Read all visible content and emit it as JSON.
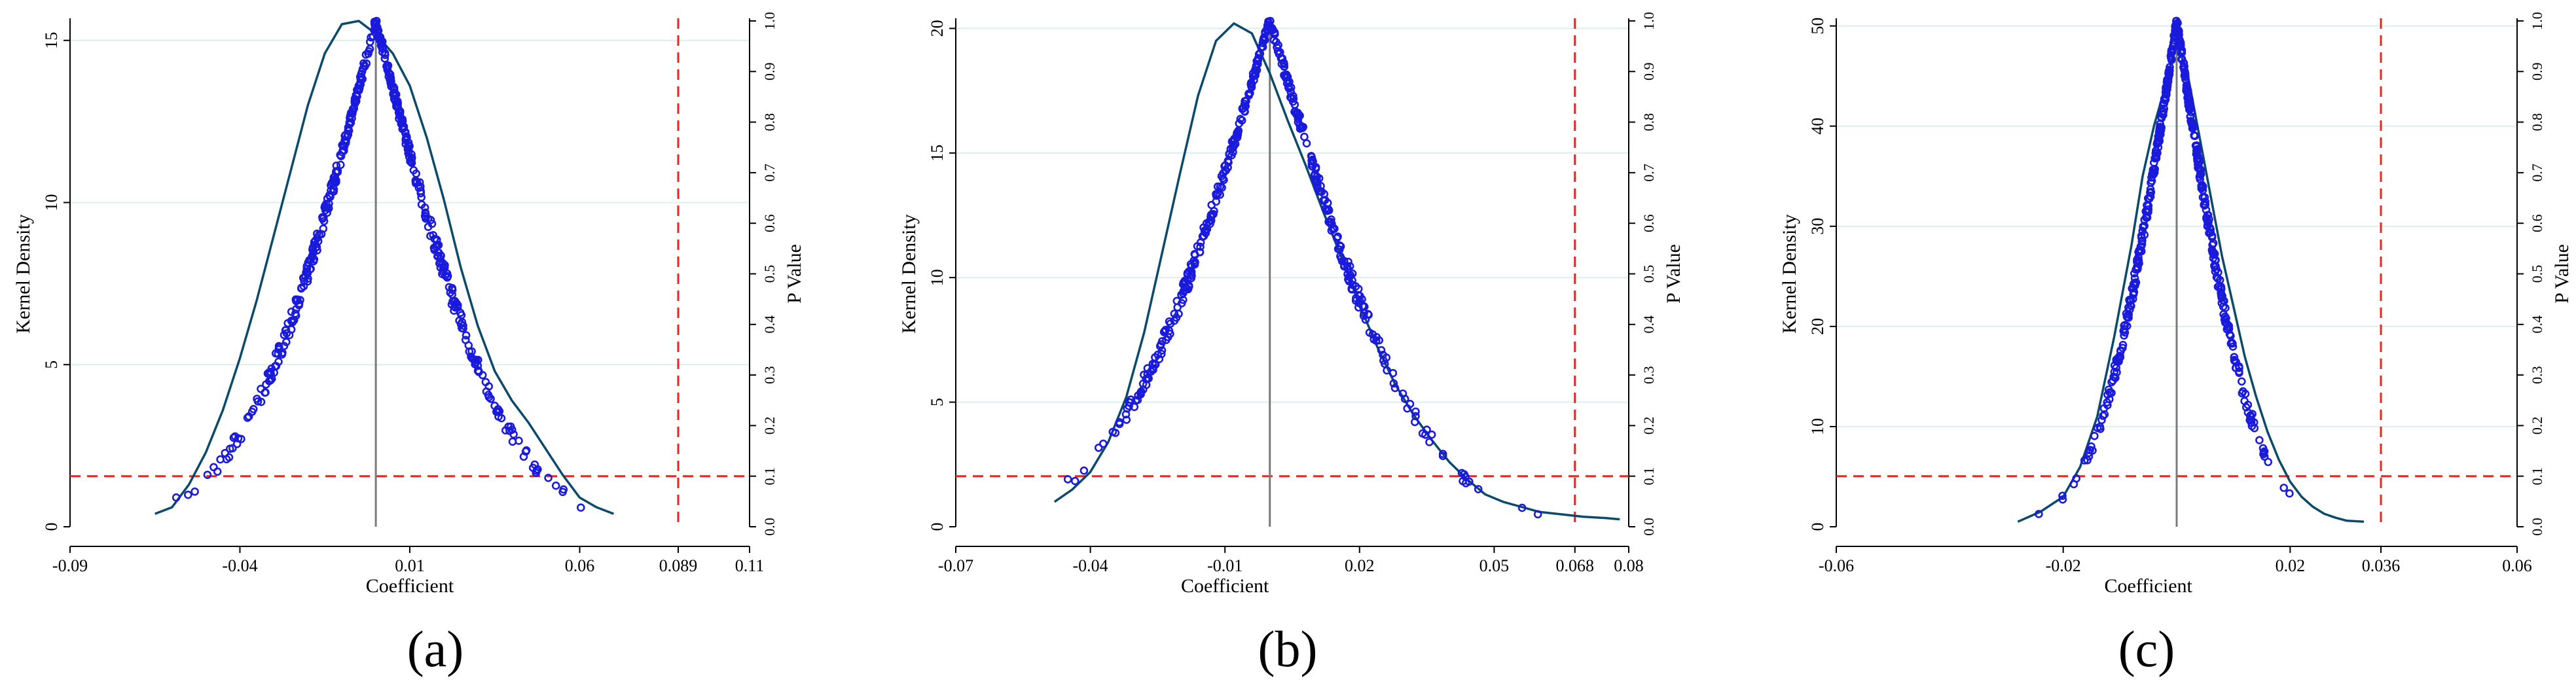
{
  "figure": {
    "colors": {
      "points": "#1a1adc",
      "density": "#0b4a6b",
      "threshold": "#e8251e",
      "baseline": "#7a7a7a",
      "grid": "#dcefee",
      "axis": "#000000"
    }
  },
  "chart_data": [
    {
      "type": "scatter",
      "panel_label": "(a)",
      "title": "",
      "xlabel": "Coefficient",
      "ylabel": "Kernel Density",
      "y2label": "P Value",
      "xlim": [
        -0.09,
        0.11
      ],
      "ylim": [
        0,
        15.6
      ],
      "y2lim": [
        0,
        1.0
      ],
      "xticks": [
        -0.09,
        -0.04,
        0.01,
        0.06,
        0.089,
        0.11
      ],
      "xtick_labels": [
        "-0.09",
        "-0.04",
        "0.01",
        "0.06",
        "0.089",
        "0.11"
      ],
      "yticks": [
        0,
        5,
        10,
        15
      ],
      "ytick_labels": [
        "0",
        "5",
        "10",
        "15"
      ],
      "y2ticks": [
        0,
        0.1,
        0.2,
        0.3,
        0.4,
        0.5,
        0.6,
        0.7,
        0.8,
        0.9,
        1.0
      ],
      "y2tick_labels": [
        "0.0",
        "0.1",
        "0.2",
        "0.3",
        "0.4",
        "0.5",
        "0.6",
        "0.7",
        "0.8",
        "0.9",
        "1.0"
      ],
      "grid": true,
      "baseline_x": 0.0,
      "threshold_x": 0.089,
      "threshold_p": 0.1,
      "series": [
        {
          "name": "Kernel Density",
          "type": "line",
          "x": [
            -0.065,
            -0.06,
            -0.055,
            -0.05,
            -0.045,
            -0.04,
            -0.035,
            -0.03,
            -0.025,
            -0.02,
            -0.015,
            -0.01,
            -0.005,
            0.0,
            0.005,
            0.01,
            0.015,
            0.02,
            0.025,
            0.03,
            0.035,
            0.04,
            0.045,
            0.05,
            0.055,
            0.06,
            0.065,
            0.07
          ],
          "y": [
            0.4,
            0.6,
            1.3,
            2.3,
            3.6,
            5.2,
            7.0,
            9.0,
            11.0,
            13.0,
            14.6,
            15.5,
            15.6,
            15.2,
            14.6,
            13.6,
            12.0,
            10.1,
            8.0,
            6.2,
            4.8,
            3.9,
            3.2,
            2.4,
            1.6,
            0.9,
            0.6,
            0.4
          ]
        },
        {
          "name": "P Value",
          "type": "scatter",
          "axis": "right",
          "generator": "two-sided normal p-value",
          "count": 460,
          "center": 0.0,
          "se": 0.024,
          "x_range": [
            -0.066,
            0.069
          ]
        }
      ]
    },
    {
      "type": "scatter",
      "panel_label": "(b)",
      "title": "",
      "xlabel": "Coefficient",
      "ylabel": "Kernel Density",
      "y2label": "P Value",
      "xlim": [
        -0.07,
        0.08
      ],
      "ylim": [
        0,
        20.3
      ],
      "y2lim": [
        0,
        1.0
      ],
      "xticks": [
        -0.07,
        -0.04,
        -0.01,
        0.02,
        0.05,
        0.068,
        0.08
      ],
      "xtick_labels": [
        "-0.07",
        "-0.04",
        "-0.01",
        "0.02",
        "0.05",
        "0.068",
        "0.08"
      ],
      "yticks": [
        0,
        5,
        10,
        15,
        20
      ],
      "ytick_labels": [
        "0",
        "5",
        "10",
        "15",
        "20"
      ],
      "y2ticks": [
        0,
        0.1,
        0.2,
        0.3,
        0.4,
        0.5,
        0.6,
        0.7,
        0.8,
        0.9,
        1.0
      ],
      "y2tick_labels": [
        "0.0",
        "0.1",
        "0.2",
        "0.3",
        "0.4",
        "0.5",
        "0.6",
        "0.7",
        "0.8",
        "0.9",
        "1.0"
      ],
      "grid": true,
      "baseline_x": 0.0,
      "threshold_x": 0.068,
      "threshold_p": 0.1,
      "series": [
        {
          "name": "Kernel Density",
          "type": "line",
          "x": [
            -0.048,
            -0.044,
            -0.04,
            -0.036,
            -0.032,
            -0.028,
            -0.024,
            -0.02,
            -0.016,
            -0.012,
            -0.008,
            -0.004,
            0.0,
            0.004,
            0.008,
            0.012,
            0.016,
            0.02,
            0.024,
            0.028,
            0.032,
            0.036,
            0.04,
            0.044,
            0.048,
            0.052,
            0.056,
            0.06,
            0.065,
            0.07,
            0.075,
            0.078
          ],
          "y": [
            1.0,
            1.5,
            2.2,
            3.4,
            5.2,
            7.8,
            11.0,
            14.2,
            17.3,
            19.5,
            20.2,
            19.8,
            18.2,
            16.3,
            14.5,
            12.6,
            10.8,
            8.9,
            7.2,
            5.7,
            4.5,
            3.5,
            2.6,
            1.9,
            1.3,
            1.0,
            0.8,
            0.6,
            0.5,
            0.4,
            0.35,
            0.3
          ]
        },
        {
          "name": "P Value",
          "type": "scatter",
          "axis": "right",
          "generator": "two-sided normal p-value",
          "count": 420,
          "center": 0.0,
          "se": 0.021,
          "x_range": [
            -0.047,
            0.077
          ]
        }
      ]
    },
    {
      "type": "scatter",
      "panel_label": "(c)",
      "title": "",
      "xlabel": "Coefficient",
      "ylabel": "Kernel Density",
      "y2label": "P Value",
      "xlim": [
        -0.06,
        0.06
      ],
      "ylim": [
        0,
        50.5
      ],
      "y2lim": [
        0,
        1.0
      ],
      "xticks": [
        -0.06,
        -0.02,
        0.02,
        0.036,
        0.06
      ],
      "xtick_labels": [
        "-0.06",
        "-0.02",
        "0.02",
        "0.036",
        "0.06"
      ],
      "yticks": [
        0,
        10,
        20,
        30,
        40,
        50
      ],
      "ytick_labels": [
        "0",
        "10",
        "20",
        "30",
        "40",
        "50"
      ],
      "y2ticks": [
        0,
        0.1,
        0.2,
        0.3,
        0.4,
        0.5,
        0.6,
        0.7,
        0.8,
        0.9,
        1.0
      ],
      "y2tick_labels": [
        "0.0",
        "0.1",
        "0.2",
        "0.3",
        "0.4",
        "0.5",
        "0.6",
        "0.7",
        "0.8",
        "0.9",
        "1.0"
      ],
      "grid": true,
      "baseline_x": 0.0,
      "threshold_x": 0.036,
      "threshold_p": 0.1,
      "series": [
        {
          "name": "Kernel Density",
          "type": "line",
          "x": [
            -0.028,
            -0.024,
            -0.02,
            -0.017,
            -0.014,
            -0.011,
            -0.008,
            -0.006,
            -0.004,
            -0.002,
            0.0,
            0.002,
            0.004,
            0.006,
            0.008,
            0.01,
            0.012,
            0.014,
            0.016,
            0.018,
            0.02,
            0.022,
            0.024,
            0.026,
            0.028,
            0.03,
            0.033
          ],
          "y": [
            0.5,
            1.5,
            3.0,
            6.0,
            11.0,
            19.0,
            28.0,
            35.0,
            40.0,
            44.0,
            48.5,
            45.0,
            39.0,
            33.0,
            27.0,
            22.0,
            17.0,
            13.0,
            9.5,
            6.7,
            4.5,
            3.0,
            2.0,
            1.3,
            0.9,
            0.6,
            0.5
          ]
        },
        {
          "name": "P Value",
          "type": "scatter",
          "axis": "right",
          "generator": "two-sided normal p-value",
          "count": 480,
          "center": 0.0,
          "se": 0.0085,
          "x_range": [
            -0.028,
            0.033
          ]
        }
      ]
    }
  ]
}
